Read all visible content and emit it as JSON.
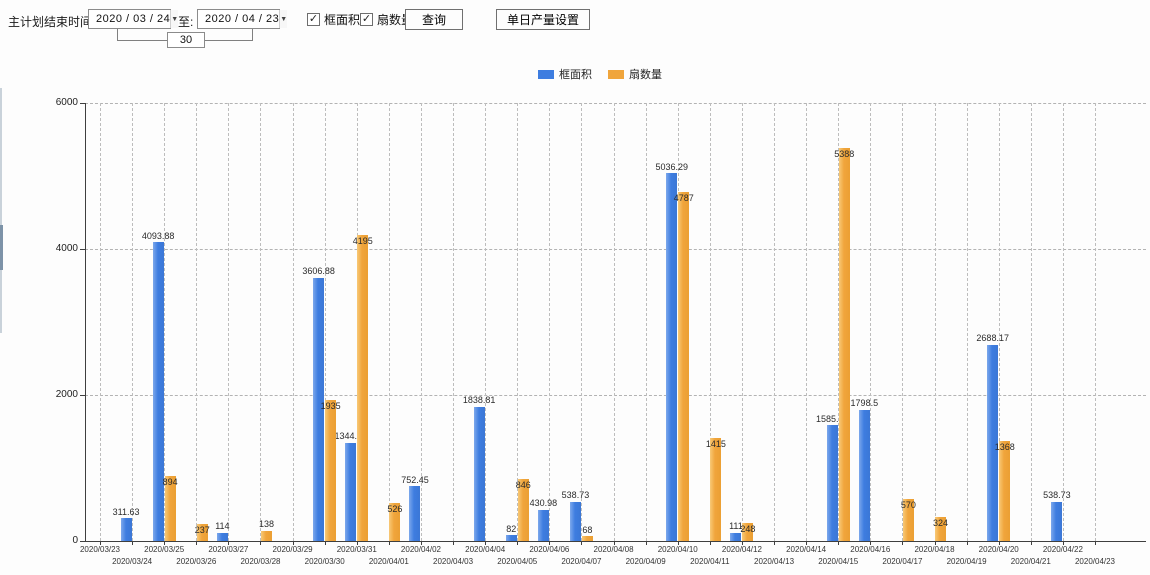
{
  "toolbar": {
    "label": "主计划结束时间:",
    "date_from": "2020 / 03 / 24",
    "to_label": "至:",
    "date_to": "2020 / 04 / 23",
    "interval_value": "30",
    "checkbox_area": "框面积",
    "checkbox_fan": "扇数量",
    "query_button": "查询",
    "daily_output_button": "单日产量设置",
    "dropdown_icon": "▼",
    "check_glyph": "✓"
  },
  "legend": {
    "items": [
      {
        "label": "框面积",
        "color": "#3e7de0"
      },
      {
        "label": "扇数量",
        "color": "#f0a53c"
      }
    ]
  },
  "chart_data": {
    "type": "bar",
    "title": "",
    "xlabel": "",
    "ylabel": "",
    "ylim": [
      0,
      6000
    ],
    "yticks": [
      0,
      2000,
      4000,
      6000
    ],
    "grid": true,
    "legend_position": "top",
    "categories": [
      "2020/03/23",
      "2020/03/24",
      "2020/03/25",
      "2020/03/26",
      "2020/03/27",
      "2020/03/28",
      "2020/03/29",
      "2020/03/30",
      "2020/03/31",
      "2020/04/01",
      "2020/04/02",
      "2020/04/03",
      "2020/04/04",
      "2020/04/05",
      "2020/04/06",
      "2020/04/07",
      "2020/04/08",
      "2020/04/09",
      "2020/04/10",
      "2020/04/11",
      "2020/04/12",
      "2020/04/13",
      "2020/04/14",
      "2020/04/15",
      "2020/04/16",
      "2020/04/17",
      "2020/04/18",
      "2020/04/19",
      "2020/04/20",
      "2020/04/21",
      "2020/04/22",
      "2020/04/23"
    ],
    "series": [
      {
        "name": "框面积",
        "color": "#3e7de0",
        "values": [
          null,
          311.63,
          4093.88,
          null,
          114,
          null,
          null,
          3606.88,
          1344.95,
          null,
          752.45,
          null,
          1838.81,
          82,
          430.98,
          538.73,
          null,
          null,
          5036.29,
          null,
          111,
          null,
          null,
          1585.96,
          1798.5,
          null,
          null,
          null,
          2688.17,
          null,
          538.73,
          null
        ]
      },
      {
        "name": "扇数量",
        "color": "#f0a53c",
        "values": [
          null,
          null,
          894,
          237,
          null,
          138,
          null,
          1935,
          4195,
          526,
          null,
          null,
          null,
          846,
          null,
          68,
          null,
          null,
          4787,
          1415,
          248,
          null,
          null,
          5388,
          null,
          570,
          324,
          null,
          1368,
          null,
          null,
          null
        ]
      }
    ]
  }
}
